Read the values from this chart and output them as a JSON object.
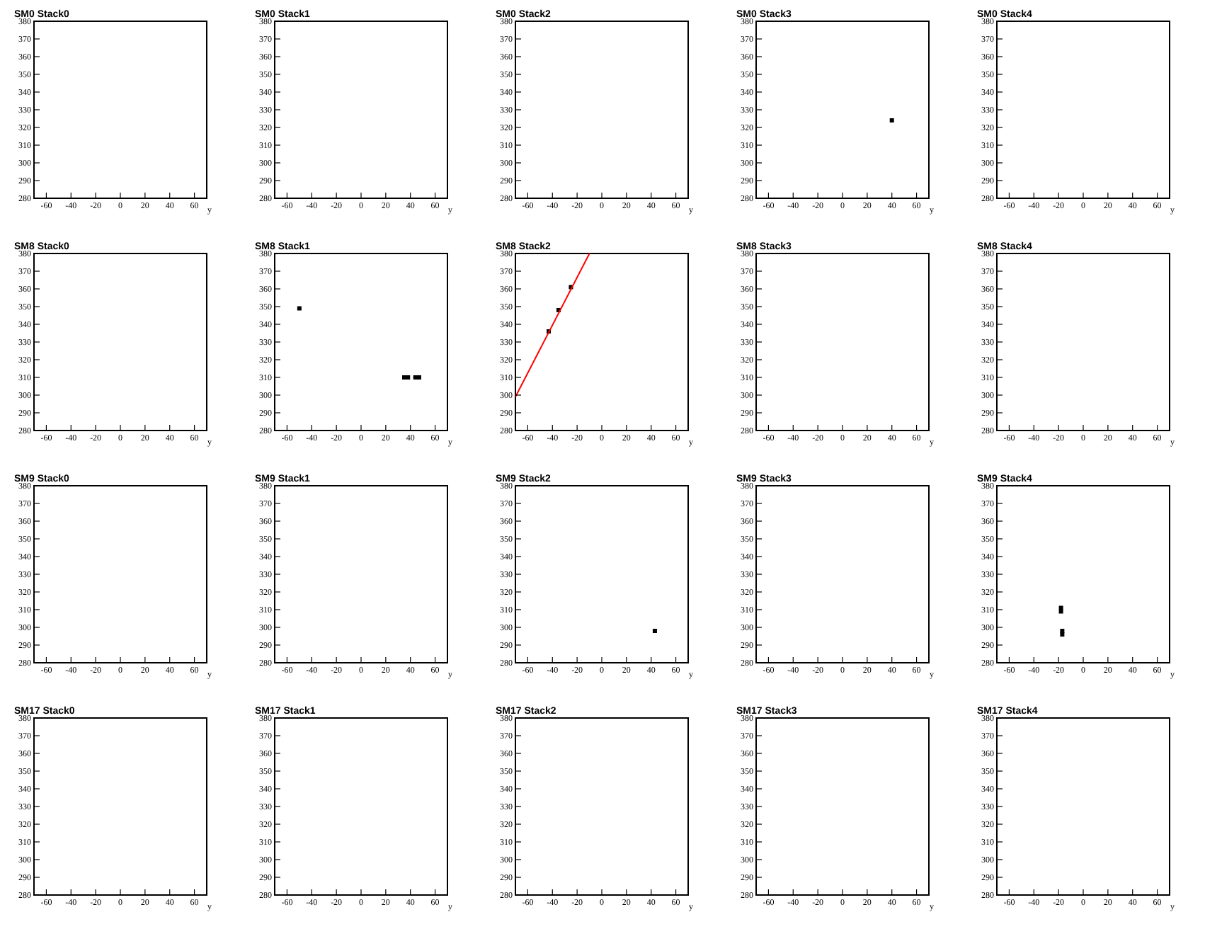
{
  "chart_data": [
    {
      "type": "scatter",
      "title": "SM0 Stack0",
      "xlabel": "y",
      "xlim": [
        -70,
        70
      ],
      "ylim": [
        280,
        380
      ],
      "xticks": [
        -60,
        -40,
        -20,
        0,
        20,
        40,
        60
      ],
      "yticks": [
        280,
        290,
        300,
        310,
        320,
        330,
        340,
        350,
        360,
        370,
        380
      ]
    },
    {
      "type": "scatter",
      "title": "SM0 Stack1",
      "xlabel": "y",
      "xlim": [
        -70,
        70
      ],
      "ylim": [
        280,
        380
      ],
      "xticks": [
        -60,
        -40,
        -20,
        0,
        20,
        40,
        60
      ],
      "yticks": [
        280,
        290,
        300,
        310,
        320,
        330,
        340,
        350,
        360,
        370,
        380
      ]
    },
    {
      "type": "scatter",
      "title": "SM0 Stack2",
      "xlabel": "y",
      "xlim": [
        -70,
        70
      ],
      "ylim": [
        280,
        380
      ],
      "xticks": [
        -60,
        -40,
        -20,
        0,
        20,
        40,
        60
      ],
      "yticks": [
        280,
        290,
        300,
        310,
        320,
        330,
        340,
        350,
        360,
        370,
        380
      ]
    },
    {
      "type": "scatter",
      "title": "SM0 Stack3",
      "xlabel": "y",
      "xlim": [
        -70,
        70
      ],
      "ylim": [
        280,
        380
      ],
      "xticks": [
        -60,
        -40,
        -20,
        0,
        20,
        40,
        60
      ],
      "yticks": [
        280,
        290,
        300,
        310,
        320,
        330,
        340,
        350,
        360,
        370,
        380
      ],
      "series": [
        {
          "color": "#000000",
          "marker": "square",
          "x": [
            40
          ],
          "values": [
            324
          ]
        }
      ]
    },
    {
      "type": "scatter",
      "title": "SM0 Stack4",
      "xlabel": "y",
      "xlim": [
        -70,
        70
      ],
      "ylim": [
        280,
        380
      ],
      "xticks": [
        -60,
        -40,
        -20,
        0,
        20,
        40,
        60
      ],
      "yticks": [
        280,
        290,
        300,
        310,
        320,
        330,
        340,
        350,
        360,
        370,
        380
      ]
    },
    {
      "type": "scatter",
      "title": "SM8 Stack0",
      "xlabel": "y",
      "xlim": [
        -70,
        70
      ],
      "ylim": [
        280,
        380
      ],
      "xticks": [
        -60,
        -40,
        -20,
        0,
        20,
        40,
        60
      ],
      "yticks": [
        280,
        290,
        300,
        310,
        320,
        330,
        340,
        350,
        360,
        370,
        380
      ]
    },
    {
      "type": "scatter",
      "title": "SM8 Stack1",
      "xlabel": "y",
      "xlim": [
        -70,
        70
      ],
      "ylim": [
        280,
        380
      ],
      "xticks": [
        -60,
        -40,
        -20,
        0,
        20,
        40,
        60
      ],
      "yticks": [
        280,
        290,
        300,
        310,
        320,
        330,
        340,
        350,
        360,
        370,
        380
      ],
      "series": [
        {
          "color": "#000000",
          "marker": "square",
          "x": [
            -50,
            35,
            38,
            44,
            47
          ],
          "values": [
            349,
            310,
            310,
            310,
            310
          ]
        }
      ]
    },
    {
      "type": "scatter",
      "title": "SM8 Stack2",
      "xlabel": "y",
      "xlim": [
        -70,
        70
      ],
      "ylim": [
        280,
        380
      ],
      "xticks": [
        -60,
        -40,
        -20,
        0,
        20,
        40,
        60
      ],
      "yticks": [
        280,
        290,
        300,
        310,
        320,
        330,
        340,
        350,
        360,
        370,
        380
      ],
      "series": [
        {
          "color": "#000000",
          "marker": "square",
          "x": [
            -43,
            -35,
            -25
          ],
          "values": [
            336,
            348,
            361
          ]
        },
        {
          "type": "line",
          "color": "#ff0000",
          "x": [
            -70,
            -10
          ],
          "values": [
            299,
            380
          ]
        }
      ]
    },
    {
      "type": "scatter",
      "title": "SM8 Stack3",
      "xlabel": "y",
      "xlim": [
        -70,
        70
      ],
      "ylim": [
        280,
        380
      ],
      "xticks": [
        -60,
        -40,
        -20,
        0,
        20,
        40,
        60
      ],
      "yticks": [
        280,
        290,
        300,
        310,
        320,
        330,
        340,
        350,
        360,
        370,
        380
      ]
    },
    {
      "type": "scatter",
      "title": "SM8 Stack4",
      "xlabel": "y",
      "xlim": [
        -70,
        70
      ],
      "ylim": [
        280,
        380
      ],
      "xticks": [
        -60,
        -40,
        -20,
        0,
        20,
        40,
        60
      ],
      "yticks": [
        280,
        290,
        300,
        310,
        320,
        330,
        340,
        350,
        360,
        370,
        380
      ]
    },
    {
      "type": "scatter",
      "title": "SM9 Stack0",
      "xlabel": "y",
      "xlim": [
        -70,
        70
      ],
      "ylim": [
        280,
        380
      ],
      "xticks": [
        -60,
        -40,
        -20,
        0,
        20,
        40,
        60
      ],
      "yticks": [
        280,
        290,
        300,
        310,
        320,
        330,
        340,
        350,
        360,
        370,
        380
      ]
    },
    {
      "type": "scatter",
      "title": "SM9 Stack1",
      "xlabel": "y",
      "xlim": [
        -70,
        70
      ],
      "ylim": [
        280,
        380
      ],
      "xticks": [
        -60,
        -40,
        -20,
        0,
        20,
        40,
        60
      ],
      "yticks": [
        280,
        290,
        300,
        310,
        320,
        330,
        340,
        350,
        360,
        370,
        380
      ]
    },
    {
      "type": "scatter",
      "title": "SM9 Stack2",
      "xlabel": "y",
      "xlim": [
        -70,
        70
      ],
      "ylim": [
        280,
        380
      ],
      "xticks": [
        -60,
        -40,
        -20,
        0,
        20,
        40,
        60
      ],
      "yticks": [
        280,
        290,
        300,
        310,
        320,
        330,
        340,
        350,
        360,
        370,
        380
      ],
      "series": [
        {
          "color": "#000000",
          "marker": "square",
          "x": [
            43
          ],
          "values": [
            298
          ]
        }
      ]
    },
    {
      "type": "scatter",
      "title": "SM9 Stack3",
      "xlabel": "y",
      "xlim": [
        -70,
        70
      ],
      "ylim": [
        280,
        380
      ],
      "xticks": [
        -60,
        -40,
        -20,
        0,
        20,
        40,
        60
      ],
      "yticks": [
        280,
        290,
        300,
        310,
        320,
        330,
        340,
        350,
        360,
        370,
        380
      ]
    },
    {
      "type": "scatter",
      "title": "SM9 Stack4",
      "xlabel": "y",
      "xlim": [
        -70,
        70
      ],
      "ylim": [
        280,
        380
      ],
      "xticks": [
        -60,
        -40,
        -20,
        0,
        20,
        40,
        60
      ],
      "yticks": [
        280,
        290,
        300,
        310,
        320,
        330,
        340,
        350,
        360,
        370,
        380
      ],
      "series": [
        {
          "color": "#000000",
          "marker": "square",
          "x": [
            -18,
            -18,
            -17,
            -17
          ],
          "values": [
            311,
            309,
            298,
            296
          ]
        }
      ]
    },
    {
      "type": "scatter",
      "title": "SM17 Stack0",
      "xlabel": "y",
      "xlim": [
        -70,
        70
      ],
      "ylim": [
        280,
        380
      ],
      "xticks": [
        -60,
        -40,
        -20,
        0,
        20,
        40,
        60
      ],
      "yticks": [
        280,
        290,
        300,
        310,
        320,
        330,
        340,
        350,
        360,
        370,
        380
      ]
    },
    {
      "type": "scatter",
      "title": "SM17 Stack1",
      "xlabel": "y",
      "xlim": [
        -70,
        70
      ],
      "ylim": [
        280,
        380
      ],
      "xticks": [
        -60,
        -40,
        -20,
        0,
        20,
        40,
        60
      ],
      "yticks": [
        280,
        290,
        300,
        310,
        320,
        330,
        340,
        350,
        360,
        370,
        380
      ]
    },
    {
      "type": "scatter",
      "title": "SM17 Stack2",
      "xlabel": "y",
      "xlim": [
        -70,
        70
      ],
      "ylim": [
        280,
        380
      ],
      "xticks": [
        -60,
        -40,
        -20,
        0,
        20,
        40,
        60
      ],
      "yticks": [
        280,
        290,
        300,
        310,
        320,
        330,
        340,
        350,
        360,
        370,
        380
      ]
    },
    {
      "type": "scatter",
      "title": "SM17 Stack3",
      "xlabel": "y",
      "xlim": [
        -70,
        70
      ],
      "ylim": [
        280,
        380
      ],
      "xticks": [
        -60,
        -40,
        -20,
        0,
        20,
        40,
        60
      ],
      "yticks": [
        280,
        290,
        300,
        310,
        320,
        330,
        340,
        350,
        360,
        370,
        380
      ]
    },
    {
      "type": "scatter",
      "title": "SM17 Stack4",
      "xlabel": "y",
      "xlim": [
        -70,
        70
      ],
      "ylim": [
        280,
        380
      ],
      "xticks": [
        -60,
        -40,
        -20,
        0,
        20,
        40,
        60
      ],
      "yticks": [
        280,
        290,
        300,
        310,
        320,
        330,
        340,
        350,
        360,
        370,
        380
      ]
    }
  ]
}
